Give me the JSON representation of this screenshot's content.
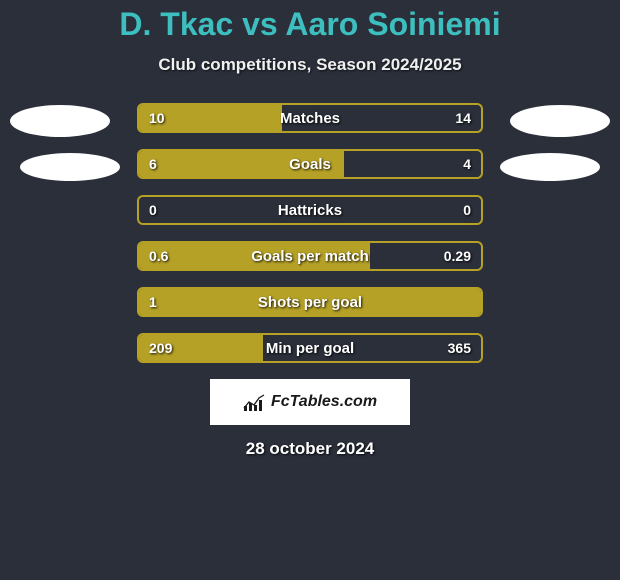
{
  "title_color": "#3dbfc0",
  "title_parts": {
    "p1": "D. Tkac",
    "vs": " vs ",
    "p2": "Aaro Soiniemi"
  },
  "subtitle": "Club competitions, Season 2024/2025",
  "accent_color": "#b5a126",
  "bg_color": "#2a2f3a",
  "rows": [
    {
      "label": "Matches",
      "left": "10",
      "right": "14",
      "left_pct": 41.7,
      "right_pct": 58.3,
      "border": "accent",
      "fill": "left"
    },
    {
      "label": "Goals",
      "left": "6",
      "right": "4",
      "left_pct": 60.0,
      "right_pct": 40.0,
      "border": "accent",
      "fill": "both"
    },
    {
      "label": "Hattricks",
      "left": "0",
      "right": "0",
      "left_pct": 0,
      "right_pct": 0,
      "border": "accent",
      "fill": "none"
    },
    {
      "label": "Goals per match",
      "left": "0.6",
      "right": "0.29",
      "left_pct": 67.4,
      "right_pct": 32.6,
      "border": "accent",
      "fill": "both"
    },
    {
      "label": "Shots per goal",
      "left": "1",
      "right": "",
      "left_pct": 100,
      "right_pct": 0,
      "border": "accent",
      "fill": "left-full"
    },
    {
      "label": "Min per goal",
      "left": "209",
      "right": "365",
      "left_pct": 36.4,
      "right_pct": 63.6,
      "border": "accent",
      "fill": "left"
    }
  ],
  "logo_text": "FcTables.com",
  "date": "28 october 2024"
}
